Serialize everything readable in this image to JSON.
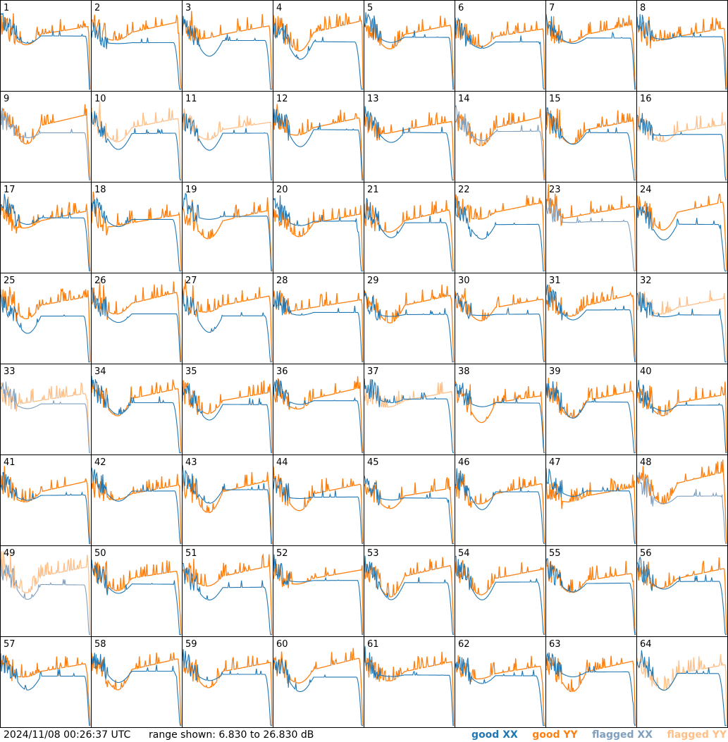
{
  "footer": {
    "timestamp": "2024/11/08 00:26:37 UTC",
    "range_text": "range shown: 6.830 to 26.830 dB"
  },
  "legend": [
    {
      "label": "good XX",
      "color": "#1f77b4"
    },
    {
      "label": "good YY",
      "color": "#ff7f0e"
    },
    {
      "label": "flagged XX",
      "color": "#7f9fbf"
    },
    {
      "label": "flagged YY",
      "color": "#ffbf87"
    }
  ],
  "chart_data": {
    "type": "line",
    "ylim": [
      6.83,
      26.83
    ],
    "grid": false,
    "legend_position": "bottom-right",
    "panels": [
      {
        "id": "1",
        "xx": "good",
        "yy": "good"
      },
      {
        "id": "2",
        "xx": "good",
        "yy": "good"
      },
      {
        "id": "3",
        "xx": "good",
        "yy": "good"
      },
      {
        "id": "4",
        "xx": "good",
        "yy": "good"
      },
      {
        "id": "5",
        "xx": "good",
        "yy": "good"
      },
      {
        "id": "6",
        "xx": "good",
        "yy": "good"
      },
      {
        "id": "7",
        "xx": "good",
        "yy": "good"
      },
      {
        "id": "8",
        "xx": "good",
        "yy": "good"
      },
      {
        "id": "9",
        "xx": "flagged",
        "yy": "good"
      },
      {
        "id": "10",
        "xx": "good",
        "yy": "flagged"
      },
      {
        "id": "11",
        "xx": "good",
        "yy": "flagged"
      },
      {
        "id": "12",
        "xx": "good",
        "yy": "good"
      },
      {
        "id": "13",
        "xx": "good",
        "yy": "good"
      },
      {
        "id": "14",
        "xx": "flagged",
        "yy": "good"
      },
      {
        "id": "15",
        "xx": "good",
        "yy": "good"
      },
      {
        "id": "16",
        "xx": "good",
        "yy": "flagged"
      },
      {
        "id": "17",
        "xx": "good",
        "yy": "good"
      },
      {
        "id": "18",
        "xx": "good",
        "yy": "good"
      },
      {
        "id": "19",
        "xx": "good",
        "yy": "good"
      },
      {
        "id": "20",
        "xx": "good",
        "yy": "good"
      },
      {
        "id": "21",
        "xx": "good",
        "yy": "good"
      },
      {
        "id": "22",
        "xx": "good",
        "yy": "good"
      },
      {
        "id": "23",
        "xx": "flagged",
        "yy": "good"
      },
      {
        "id": "24",
        "xx": "good",
        "yy": "good"
      },
      {
        "id": "25",
        "xx": "good",
        "yy": "good"
      },
      {
        "id": "26",
        "xx": "good",
        "yy": "good"
      },
      {
        "id": "27",
        "xx": "good",
        "yy": "good"
      },
      {
        "id": "28",
        "xx": "good",
        "yy": "good"
      },
      {
        "id": "29",
        "xx": "good",
        "yy": "good"
      },
      {
        "id": "30",
        "xx": "good",
        "yy": "good"
      },
      {
        "id": "31",
        "xx": "good",
        "yy": "good"
      },
      {
        "id": "32",
        "xx": "good",
        "yy": "flagged"
      },
      {
        "id": "33",
        "xx": "flagged",
        "yy": "flagged"
      },
      {
        "id": "34",
        "xx": "good",
        "yy": "good"
      },
      {
        "id": "35",
        "xx": "good",
        "yy": "good"
      },
      {
        "id": "36",
        "xx": "good",
        "yy": "good"
      },
      {
        "id": "37",
        "xx": "good",
        "yy": "flagged"
      },
      {
        "id": "38",
        "xx": "good",
        "yy": "good"
      },
      {
        "id": "39",
        "xx": "good",
        "yy": "good"
      },
      {
        "id": "40",
        "xx": "good",
        "yy": "good"
      },
      {
        "id": "41",
        "xx": "good",
        "yy": "good"
      },
      {
        "id": "42",
        "xx": "good",
        "yy": "good"
      },
      {
        "id": "43",
        "xx": "good",
        "yy": "good"
      },
      {
        "id": "44",
        "xx": "good",
        "yy": "good"
      },
      {
        "id": "45",
        "xx": "good",
        "yy": "good"
      },
      {
        "id": "46",
        "xx": "good",
        "yy": "good"
      },
      {
        "id": "47",
        "xx": "good",
        "yy": "good"
      },
      {
        "id": "48",
        "xx": "flagged",
        "yy": "good"
      },
      {
        "id": "49",
        "xx": "flagged",
        "yy": "flagged"
      },
      {
        "id": "50",
        "xx": "good",
        "yy": "good"
      },
      {
        "id": "51",
        "xx": "good",
        "yy": "good"
      },
      {
        "id": "52",
        "xx": "good",
        "yy": "good"
      },
      {
        "id": "53",
        "xx": "good",
        "yy": "good"
      },
      {
        "id": "54",
        "xx": "good",
        "yy": "good"
      },
      {
        "id": "55",
        "xx": "good",
        "yy": "good"
      },
      {
        "id": "56",
        "xx": "good",
        "yy": "good"
      },
      {
        "id": "57",
        "xx": "good",
        "yy": "good"
      },
      {
        "id": "58",
        "xx": "good",
        "yy": "good"
      },
      {
        "id": "59",
        "xx": "good",
        "yy": "good"
      },
      {
        "id": "60",
        "xx": "good",
        "yy": "good"
      },
      {
        "id": "61",
        "xx": "good",
        "yy": "good"
      },
      {
        "id": "62",
        "xx": "good",
        "yy": "good"
      },
      {
        "id": "63",
        "xx": "good",
        "yy": "good"
      },
      {
        "id": "64",
        "xx": "good",
        "yy": "flagged"
      }
    ]
  }
}
